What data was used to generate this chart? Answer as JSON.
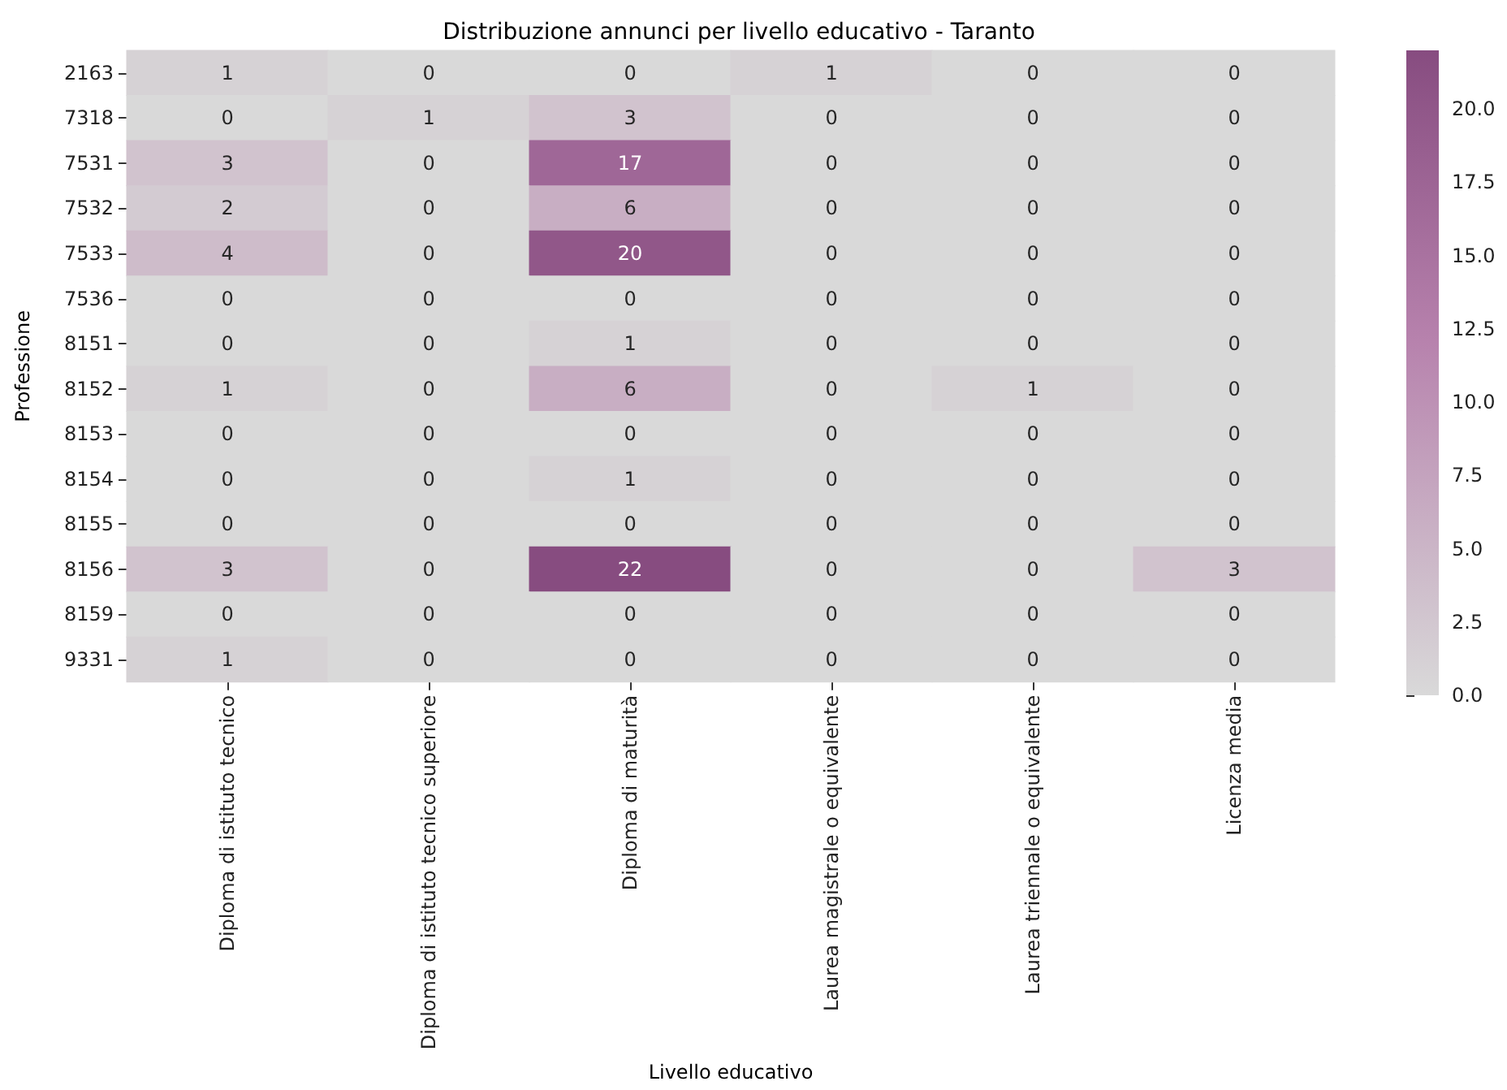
{
  "chart_data": {
    "type": "heatmap",
    "title": "Distribuzione annunci per livello educativo - Taranto",
    "xlabel": "Livello educativo",
    "ylabel": "Professione",
    "categories": [
      "Diploma di istituto tecnico",
      "Diploma di istituto tecnico superiore",
      "Diploma di maturità",
      "Laurea magistrale o equivalente",
      "Laurea triennale o equivalente",
      "Licenza media"
    ],
    "y_categories": [
      "2163",
      "7318",
      "7531",
      "7532",
      "7533",
      "7536",
      "8151",
      "8152",
      "8153",
      "8154",
      "8155",
      "8156",
      "8159",
      "9331"
    ],
    "cells": [
      [
        1,
        0,
        0,
        1,
        0,
        0
      ],
      [
        0,
        1,
        3,
        0,
        0,
        0
      ],
      [
        3,
        0,
        17,
        0,
        0,
        0
      ],
      [
        2,
        0,
        6,
        0,
        0,
        0
      ],
      [
        4,
        0,
        20,
        0,
        0,
        0
      ],
      [
        0,
        0,
        0,
        0,
        0,
        0
      ],
      [
        0,
        0,
        1,
        0,
        0,
        0
      ],
      [
        1,
        0,
        6,
        0,
        1,
        0
      ],
      [
        0,
        0,
        0,
        0,
        0,
        0
      ],
      [
        0,
        0,
        1,
        0,
        0,
        0
      ],
      [
        0,
        0,
        0,
        0,
        0,
        0
      ],
      [
        3,
        0,
        22,
        0,
        0,
        3
      ],
      [
        0,
        0,
        0,
        0,
        0,
        0
      ],
      [
        1,
        0,
        0,
        0,
        0,
        0
      ]
    ],
    "data_labels": true,
    "clim": [
      0,
      22
    ],
    "cticks": [
      {
        "value": 0,
        "label": "0.0"
      },
      {
        "value": 2.5,
        "label": "2.5"
      },
      {
        "value": 5,
        "label": "5.0"
      },
      {
        "value": 7.5,
        "label": "7.5"
      },
      {
        "value": 10,
        "label": "10.0"
      },
      {
        "value": 12.5,
        "label": "12.5"
      },
      {
        "value": 15,
        "label": "15.0"
      },
      {
        "value": 17.5,
        "label": "17.5"
      },
      {
        "value": 20,
        "label": "20.0"
      }
    ]
  }
}
